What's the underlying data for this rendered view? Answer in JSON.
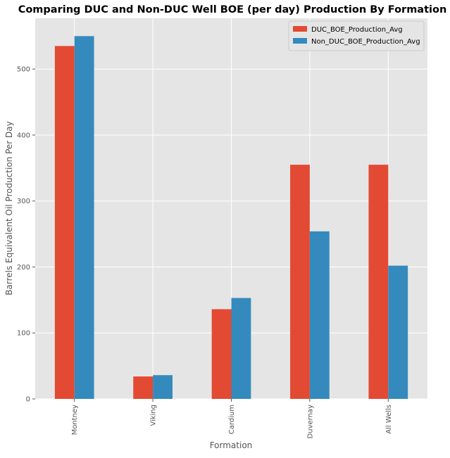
{
  "chart_data": {
    "type": "bar",
    "title": "Comparing DUC and Non-DUC Well BOE (per day) Production By Formation",
    "xlabel": "Formation",
    "ylabel": "Barrels Equivalent Oil Production Per Day",
    "categories": [
      "Montney",
      "Viking",
      "Cardium",
      "Duvernay",
      "All Wells"
    ],
    "series": [
      {
        "name": "DUC_BOE_Production_Avg",
        "color": "#E24A33",
        "values": [
          535,
          34,
          136,
          355,
          355
        ]
      },
      {
        "name": "Non_DUC_BOE_Production_Avg",
        "color": "#348ABD",
        "values": [
          550,
          36,
          153,
          254,
          202
        ]
      }
    ],
    "ylim": [
      0,
      577
    ],
    "yticks": [
      0,
      100,
      200,
      300,
      400,
      500
    ],
    "grid": true,
    "legend_position": "top-right",
    "style": {
      "background": "#E5E5E5",
      "grid_color": "#FFFFFF",
      "tick_color": "#555555"
    }
  }
}
